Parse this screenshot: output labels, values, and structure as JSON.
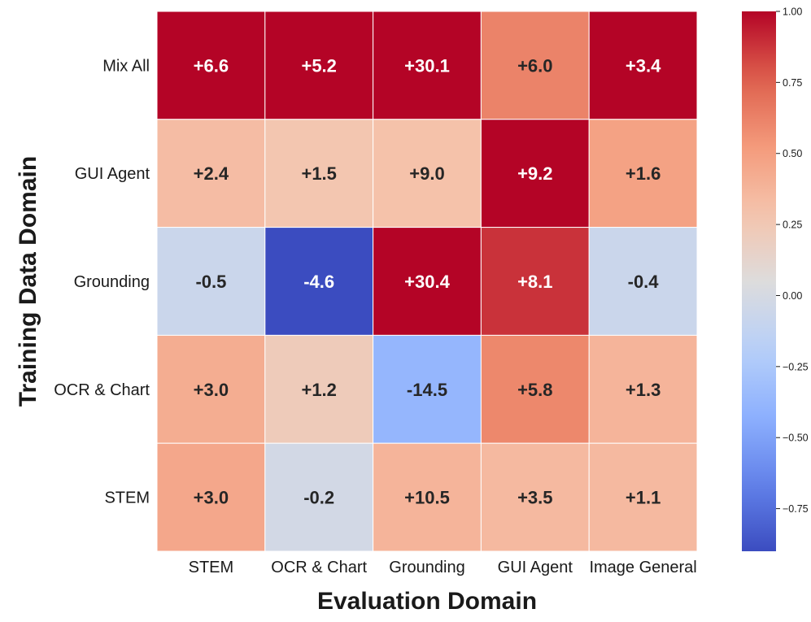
{
  "chart_data": {
    "type": "heatmap",
    "title": "",
    "xlabel": "Evaluation Domain",
    "ylabel": "Training Data Domain",
    "x_categories": [
      "STEM",
      "OCR & Chart",
      "Grounding",
      "GUI Agent",
      "Image General"
    ],
    "y_categories": [
      "Mix All",
      "GUI Agent",
      "Grounding",
      "OCR & Chart",
      "STEM"
    ],
    "labels": [
      [
        "+6.6",
        "+5.2",
        "+30.1",
        "+6.0",
        "+3.4"
      ],
      [
        "+2.4",
        "+1.5",
        "+9.0",
        "+9.2",
        "+1.6"
      ],
      [
        "-0.5",
        "-4.6",
        "+30.4",
        "+8.1",
        "-0.4"
      ],
      [
        "+3.0",
        "+1.2",
        "-14.5",
        "+5.8",
        "+1.3"
      ],
      [
        "+3.0",
        "-0.2",
        "+10.5",
        "+3.5",
        "+1.1"
      ]
    ],
    "color_values": [
      [
        1.0,
        1.0,
        1.0,
        0.62,
        1.0
      ],
      [
        0.33,
        0.27,
        0.3,
        1.0,
        0.48
      ],
      [
        -0.07,
        -0.9,
        1.0,
        0.88,
        -0.07
      ],
      [
        0.42,
        0.22,
        -0.38,
        0.6,
        0.38
      ],
      [
        0.45,
        -0.02,
        0.38,
        0.35,
        0.35
      ]
    ],
    "colormap": "coolwarm",
    "vmin": -0.9,
    "vmax": 1.0,
    "colorbar_ticks": [
      1.0,
      0.75,
      0.5,
      0.25,
      0.0,
      -0.25,
      -0.5,
      -0.75
    ],
    "colorbar_tick_labels": [
      "1.00",
      "0.75",
      "0.50",
      "0.25",
      "0.00",
      "−0.25",
      "−0.50",
      "−0.75"
    ],
    "grid": false,
    "cell_border_color": "#ffffff"
  }
}
